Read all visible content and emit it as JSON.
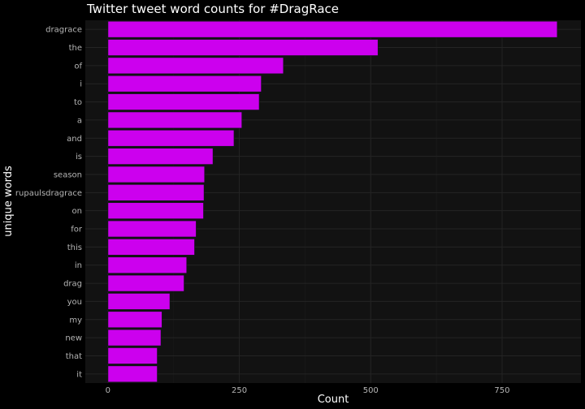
{
  "chart_data": {
    "type": "bar",
    "orientation": "horizontal",
    "title": "Twitter tweet word counts for #DragRace",
    "xlabel": "Count",
    "ylabel": "unique words",
    "categories": [
      "dragrace",
      "the",
      "of",
      "i",
      "to",
      "a",
      "and",
      "is",
      "season",
      "rupaulsdragrace",
      "on",
      "for",
      "this",
      "in",
      "drag",
      "you",
      "my",
      "new",
      "that",
      "it"
    ],
    "values": [
      855,
      514,
      334,
      292,
      288,
      255,
      240,
      200,
      184,
      183,
      182,
      168,
      165,
      150,
      145,
      118,
      103,
      101,
      94,
      94
    ],
    "xlim": [
      -43,
      900
    ],
    "xticks": [
      0,
      250,
      500,
      750
    ],
    "grid": true,
    "legend": "none",
    "colors": {
      "bar_fill": "#cc00ee",
      "bar_outline": "#14141a",
      "panel": "#121212",
      "background": "#000000",
      "grid": "#242424"
    }
  }
}
